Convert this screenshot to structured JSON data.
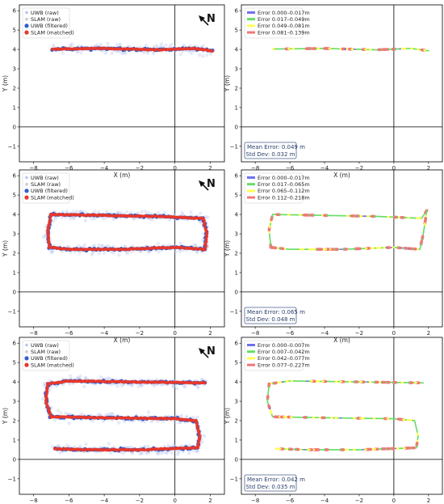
{
  "figure": {
    "panels": 6
  },
  "chart_data": [
    {
      "type": "scatter",
      "xlabel": "X (m)",
      "ylabel": "Y (m)",
      "xlim": [
        -8.8,
        2.8
      ],
      "ylim": [
        -1.8,
        6.3
      ],
      "xticks": [
        -8,
        -6,
        -4,
        -2,
        0,
        2
      ],
      "yticks": [
        -1,
        0,
        1,
        2,
        3,
        4,
        5,
        6
      ],
      "legend_position": "top-left",
      "north_label": "N",
      "legend": [
        "UWB (raw)",
        "SLAM (raw)",
        "UWB (filtered)",
        "SLAM (matched)"
      ],
      "colors": {
        "uwb_raw": "#b7c6ee",
        "slam_raw": "#cccccc",
        "uwb_filtered": "#2f5fd0",
        "slam_matched": "#e8372a"
      },
      "path": [
        [
          -6.9,
          4.02
        ],
        [
          -4.0,
          4.05
        ],
        [
          -1.0,
          3.98
        ],
        [
          1.0,
          4.05
        ],
        [
          2.1,
          3.93
        ]
      ]
    },
    {
      "type": "scatter",
      "xlabel": "X (m)",
      "ylabel": "Y (m)",
      "xlim": [
        -8.8,
        2.8
      ],
      "ylim": [
        -1.8,
        6.3
      ],
      "xticks": [
        -8,
        -6,
        -4,
        -2,
        0,
        2
      ],
      "yticks": [
        -1,
        0,
        1,
        2,
        3,
        4,
        5,
        6
      ],
      "legend_position": "top-left",
      "legend": [
        "Error 0.000–0.017m",
        "Error 0.017–0.049m",
        "Error 0.049–0.081m",
        "Error 0.081–0.139m"
      ],
      "legend_colors": [
        "#7070f0",
        "#66dd66",
        "#ffff55",
        "#f07777"
      ],
      "mean_error": "Mean Error: 0.049 m",
      "std_dev": "Std Dev: 0.032 m",
      "path": [
        [
          -7.0,
          4.02
        ],
        [
          -4.0,
          4.05
        ],
        [
          -1.0,
          3.98
        ],
        [
          1.0,
          4.05
        ],
        [
          2.0,
          3.93
        ]
      ]
    },
    {
      "type": "scatter",
      "xlabel": "X (m)",
      "ylabel": "Y (m)",
      "xlim": [
        -8.8,
        2.8
      ],
      "ylim": [
        -1.8,
        6.3
      ],
      "xticks": [
        -8,
        -6,
        -4,
        -2,
        0,
        2
      ],
      "yticks": [
        -1,
        0,
        1,
        2,
        3,
        4,
        5,
        6
      ],
      "legend_position": "top-left",
      "north_label": "N",
      "legend": [
        "UWB (raw)",
        "SLAM (raw)",
        "UWB (filtered)",
        "SLAM (matched)"
      ],
      "colors": {
        "uwb_raw": "#b7c6ee",
        "slam_raw": "#cccccc",
        "uwb_filtered": "#2f5fd0",
        "slam_matched": "#e8372a"
      },
      "path": [
        [
          -7.0,
          4.0
        ],
        [
          -4.0,
          3.95
        ],
        [
          -1.0,
          3.9
        ],
        [
          1.6,
          3.8
        ],
        [
          1.8,
          3.0
        ],
        [
          1.7,
          2.2
        ],
        [
          0.0,
          2.3
        ],
        [
          -3.0,
          2.2
        ],
        [
          -6.0,
          2.2
        ],
        [
          -7.1,
          2.3
        ],
        [
          -7.2,
          3.2
        ],
        [
          -7.0,
          4.0
        ]
      ]
    },
    {
      "type": "scatter",
      "xlabel": "X (m)",
      "ylabel": "Y (m)",
      "xlim": [
        -8.8,
        2.8
      ],
      "ylim": [
        -1.8,
        6.3
      ],
      "xticks": [
        -8,
        -6,
        -4,
        -2,
        0,
        2
      ],
      "yticks": [
        -1,
        0,
        1,
        2,
        3,
        4,
        5,
        6
      ],
      "legend_position": "top-left",
      "legend": [
        "Error 0.000–0.017m",
        "Error 0.017–0.065m",
        "Error 0.065–0.112m",
        "Error 0.112–0.218m"
      ],
      "legend_colors": [
        "#7070f0",
        "#66dd66",
        "#ffff55",
        "#f07777"
      ],
      "mean_error": "Mean Error: 0.065 m",
      "std_dev": "Std Dev: 0.048 m",
      "path": [
        [
          -7.0,
          4.0
        ],
        [
          -4.0,
          3.95
        ],
        [
          -1.0,
          3.9
        ],
        [
          1.6,
          3.8
        ],
        [
          1.9,
          4.2
        ],
        [
          1.7,
          3.0
        ],
        [
          1.5,
          2.2
        ],
        [
          0.0,
          2.3
        ],
        [
          -3.0,
          2.2
        ],
        [
          -6.0,
          2.2
        ],
        [
          -7.1,
          2.3
        ],
        [
          -7.2,
          3.2
        ],
        [
          -7.0,
          4.0
        ]
      ]
    },
    {
      "type": "scatter",
      "xlabel": "X (m)",
      "ylabel": "Y (m)",
      "xlim": [
        -8.8,
        2.8
      ],
      "ylim": [
        -1.8,
        6.3
      ],
      "xticks": [
        -8,
        -6,
        -4,
        -2,
        0,
        2
      ],
      "yticks": [
        -1,
        0,
        1,
        2,
        3,
        4,
        5,
        6
      ],
      "legend_position": "top-left",
      "north_label": "N",
      "legend": [
        "UWB (raw)",
        "SLAM (raw)",
        "UWB (filtered)",
        "SLAM (matched)"
      ],
      "colors": {
        "uwb_raw": "#b7c6ee",
        "slam_raw": "#cccccc",
        "uwb_filtered": "#2f5fd0",
        "slam_matched": "#e8372a"
      },
      "path": [
        [
          1.7,
          3.95
        ],
        [
          -2.0,
          4.0
        ],
        [
          -6.0,
          4.05
        ],
        [
          -7.2,
          3.9
        ],
        [
          -7.3,
          3.0
        ],
        [
          -7.0,
          2.2
        ],
        [
          -4.0,
          2.15
        ],
        [
          0.0,
          2.1
        ],
        [
          1.2,
          2.0
        ],
        [
          1.4,
          1.2
        ],
        [
          1.3,
          0.6
        ],
        [
          -2.0,
          0.5
        ],
        [
          -5.0,
          0.5
        ],
        [
          -6.8,
          0.55
        ]
      ]
    },
    {
      "type": "scatter",
      "xlabel": "X (m)",
      "ylabel": "Y (m)",
      "xlim": [
        -8.8,
        2.8
      ],
      "ylim": [
        -1.8,
        6.3
      ],
      "xticks": [
        -8,
        -6,
        -4,
        -2,
        0,
        2
      ],
      "yticks": [
        -1,
        0,
        1,
        2,
        3,
        4,
        5,
        6
      ],
      "legend_position": "top-left",
      "legend": [
        "Error 0.000–0.007m",
        "Error 0.007–0.042m",
        "Error 0.042–0.077m",
        "Error 0.077–0.227m"
      ],
      "legend_colors": [
        "#7070f0",
        "#66dd66",
        "#ffff55",
        "#f07777"
      ],
      "mean_error": "Mean Error: 0.042 m",
      "std_dev": "Std Dev: 0.035 m",
      "path": [
        [
          1.7,
          3.95
        ],
        [
          -2.0,
          4.0
        ],
        [
          -6.0,
          4.05
        ],
        [
          -7.2,
          3.9
        ],
        [
          -7.3,
          3.0
        ],
        [
          -7.0,
          2.2
        ],
        [
          -4.0,
          2.15
        ],
        [
          0.0,
          2.1
        ],
        [
          1.2,
          2.0
        ],
        [
          1.4,
          1.2
        ],
        [
          1.3,
          0.6
        ],
        [
          -2.0,
          0.5
        ],
        [
          -5.0,
          0.5
        ],
        [
          -6.8,
          0.55
        ]
      ]
    }
  ]
}
